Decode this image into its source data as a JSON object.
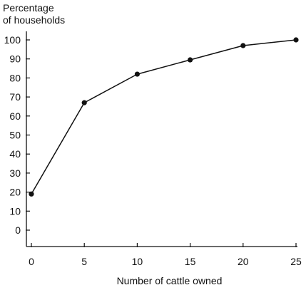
{
  "chart_data": {
    "type": "line",
    "title": "",
    "ylabel_lines": [
      "Percentage",
      "of households"
    ],
    "xlabel": "Number of cattle owned",
    "x_ticks": [
      0,
      5,
      10,
      15,
      20,
      25
    ],
    "y_ticks": [
      0,
      10,
      20,
      30,
      40,
      50,
      60,
      70,
      80,
      90,
      100
    ],
    "xlim": [
      0,
      25
    ],
    "ylim": [
      0,
      100
    ],
    "grid": false,
    "series": [
      {
        "x": [
          0,
          5,
          10,
          15,
          20,
          25
        ],
        "y": [
          19,
          67,
          82,
          89.5,
          97,
          100
        ]
      }
    ],
    "colors": {
      "line": "#111111",
      "marker": "#111111",
      "axis": "#111111"
    }
  }
}
